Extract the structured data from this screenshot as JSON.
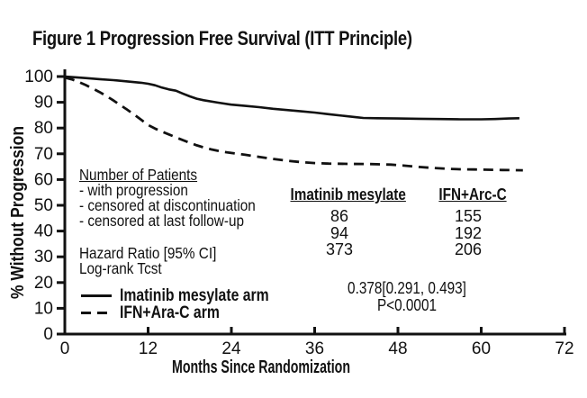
{
  "figure": {
    "title": "Figure 1 Progression Free Survival (ITT Principle)"
  },
  "chart_data": {
    "type": "line",
    "title": "Figure 1 Progression Free Survival (ITT Principle)",
    "xlabel": "Months Since Randomization",
    "ylabel": "% Without Progression",
    "xlim": [
      0,
      72
    ],
    "ylim": [
      0,
      100
    ],
    "x_ticks": [
      0,
      12,
      24,
      36,
      48,
      60,
      72
    ],
    "y_ticks": [
      0,
      10,
      20,
      30,
      40,
      50,
      60,
      70,
      80,
      90,
      100
    ],
    "grid": false,
    "legend_position": "inside-bottom-left",
    "series": [
      {
        "name": "Imatinib mesylate arm",
        "line_style": "solid",
        "color": "#111111",
        "points": [
          [
            0,
            100
          ],
          [
            1,
            99.8
          ],
          [
            3,
            99.4
          ],
          [
            5,
            99.0
          ],
          [
            7,
            98.6
          ],
          [
            9,
            98.1
          ],
          [
            11,
            97.6
          ],
          [
            12,
            97.2
          ],
          [
            13,
            96.6
          ],
          [
            14,
            95.7
          ],
          [
            15,
            95.0
          ],
          [
            16,
            94.5
          ],
          [
            17,
            93.4
          ],
          [
            18,
            92.3
          ],
          [
            19,
            91.4
          ],
          [
            20,
            90.8
          ],
          [
            22,
            89.9
          ],
          [
            24,
            89.1
          ],
          [
            26,
            88.6
          ],
          [
            28,
            88.1
          ],
          [
            30,
            87.5
          ],
          [
            32,
            87.0
          ],
          [
            34,
            86.5
          ],
          [
            36,
            86.0
          ],
          [
            38,
            85.4
          ],
          [
            40,
            84.8
          ],
          [
            42,
            84.2
          ],
          [
            43,
            83.9
          ],
          [
            45,
            83.8
          ],
          [
            48,
            83.7
          ],
          [
            51,
            83.6
          ],
          [
            54,
            83.5
          ],
          [
            57,
            83.4
          ],
          [
            60,
            83.4
          ],
          [
            62,
            83.5
          ],
          [
            64,
            83.7
          ],
          [
            65.5,
            83.8
          ]
        ]
      },
      {
        "name": "IFN+Ara-C arm",
        "line_style": "dashed",
        "color": "#111111",
        "points": [
          [
            0,
            99.6
          ],
          [
            1,
            98.9
          ],
          [
            2,
            97.9
          ],
          [
            3,
            96.7
          ],
          [
            4,
            95.4
          ],
          [
            5,
            94.0
          ],
          [
            6,
            92.4
          ],
          [
            7,
            90.7
          ],
          [
            8,
            88.9
          ],
          [
            9,
            87.1
          ],
          [
            10,
            85.2
          ],
          [
            11,
            83.2
          ],
          [
            12,
            81.2
          ],
          [
            13,
            79.8
          ],
          [
            14,
            78.6
          ],
          [
            15,
            77.5
          ],
          [
            16,
            76.4
          ],
          [
            17,
            75.3
          ],
          [
            18,
            74.3
          ],
          [
            19,
            73.3
          ],
          [
            20,
            72.5
          ],
          [
            21,
            71.8
          ],
          [
            22,
            71.2
          ],
          [
            23,
            70.7
          ],
          [
            24,
            70.3
          ],
          [
            26,
            69.6
          ],
          [
            28,
            68.8
          ],
          [
            30,
            68.0
          ],
          [
            32,
            67.3
          ],
          [
            34,
            66.8
          ],
          [
            36,
            66.4
          ],
          [
            38,
            66.2
          ],
          [
            41,
            66.1
          ],
          [
            44,
            66.0
          ],
          [
            47,
            65.8
          ],
          [
            49,
            65.4
          ],
          [
            51,
            64.9
          ],
          [
            53,
            64.5
          ],
          [
            55,
            64.2
          ],
          [
            57,
            64.0
          ],
          [
            59,
            63.9
          ],
          [
            61,
            63.8
          ],
          [
            63,
            63.7
          ],
          [
            66,
            63.6
          ]
        ]
      }
    ]
  },
  "annotation": {
    "patients_heading": "Number of Patients",
    "patient_categories": [
      "- with progression",
      "- censored at discontinuation",
      "- censored at last follow-up"
    ],
    "hazard_ratio_label": "Hazard Ratio [95% CI]",
    "log_rank_label": "Log-rank Tcst",
    "table": {
      "columns": [
        "Imatinib mesylate",
        "IFN+Arc-C"
      ],
      "rows": [
        [
          "86",
          "155"
        ],
        [
          "94",
          "192"
        ],
        [
          "373",
          "206"
        ]
      ]
    },
    "hazard_ratio_value": "0.378[0.291, 0.493]",
    "p_value": "P&lt;0.0001"
  },
  "legend": {
    "items": [
      {
        "label": "Imatinib mesylate arm",
        "style": "solid"
      },
      {
        "label": "IFN+Ara-C arm",
        "style": "dashed"
      }
    ]
  },
  "colors": {
    "ink": "#111111",
    "background": "#ffffff"
  }
}
